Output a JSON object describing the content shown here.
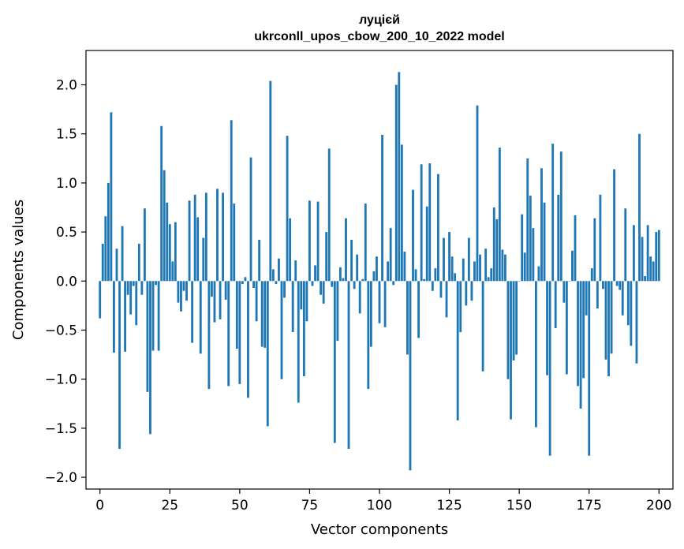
{
  "chart_data": {
    "type": "bar",
    "title_line1": "луцієй",
    "title_line2": "ukrconll_upos_cbow_200_10_2022 model",
    "xlabel": "Vector components",
    "ylabel": "Components values",
    "xlim": [
      -5,
      205
    ],
    "ylim": [
      -2.12,
      2.35
    ],
    "xticks": [
      0,
      25,
      50,
      75,
      100,
      125,
      150,
      175,
      200
    ],
    "xtick_labels": [
      "0",
      "25",
      "50",
      "75",
      "100",
      "125",
      "150",
      "175",
      "200"
    ],
    "yticks": [
      -2.0,
      -1.5,
      -1.0,
      -0.5,
      0.0,
      0.5,
      1.0,
      1.5,
      2.0
    ],
    "ytick_labels": [
      "−2.0",
      "−1.5",
      "−1.0",
      "−0.5",
      "0.0",
      "0.5",
      "1.0",
      "1.5",
      "2.0"
    ],
    "bar_color": "#1f77b4",
    "grid": false,
    "values": [
      -0.38,
      0.38,
      0.66,
      1.0,
      1.72,
      -0.73,
      0.33,
      -1.71,
      0.56,
      -0.72,
      -0.14,
      -0.34,
      -0.05,
      -0.45,
      0.38,
      -0.14,
      0.74,
      -1.13,
      -1.56,
      -0.71,
      -0.04,
      -0.71,
      1.58,
      1.13,
      0.8,
      0.58,
      0.2,
      0.6,
      -0.22,
      -0.31,
      -0.1,
      -0.2,
      0.82,
      -0.63,
      0.88,
      0.65,
      -0.74,
      0.44,
      0.9,
      -1.1,
      -0.16,
      -0.42,
      0.94,
      -0.39,
      0.9,
      -0.19,
      -1.07,
      1.64,
      0.79,
      -0.69,
      -1.05,
      -0.03,
      0.04,
      -1.19,
      1.26,
      -0.07,
      -0.41,
      0.42,
      -0.67,
      -0.68,
      -1.48,
      2.04,
      0.12,
      -0.03,
      0.23,
      -1.0,
      -0.17,
      1.48,
      0.64,
      -0.52,
      0.21,
      -1.24,
      -0.29,
      -0.97,
      -0.41,
      0.82,
      -0.05,
      0.16,
      0.81,
      -0.14,
      -0.23,
      0.5,
      1.35,
      -0.06,
      -1.65,
      -0.61,
      0.14,
      0.03,
      0.64,
      -1.71,
      0.42,
      -0.08,
      0.27,
      -0.33,
      0.02,
      0.79,
      -1.1,
      -0.67,
      0.1,
      0.25,
      -0.43,
      1.49,
      -0.47,
      0.2,
      0.54,
      -0.04,
      2.0,
      2.13,
      1.39,
      0.3,
      -0.75,
      -1.93,
      0.93,
      0.12,
      -0.58,
      1.19,
      0.02,
      0.76,
      1.2,
      -0.1,
      0.13,
      1.09,
      -0.17,
      0.44,
      -0.37,
      0.5,
      0.25,
      0.08,
      -1.42,
      -0.52,
      0.23,
      -0.25,
      0.44,
      -0.2,
      0.2,
      1.79,
      0.27,
      -0.92,
      0.33,
      0.04,
      0.13,
      0.75,
      0.63,
      1.36,
      0.32,
      0.27,
      -1.0,
      -1.41,
      -0.81,
      -0.75,
      0.0,
      0.68,
      0.29,
      1.25,
      0.87,
      0.54,
      -1.49,
      0.15,
      1.15,
      0.8,
      -0.96,
      -1.78,
      1.4,
      -0.48,
      0.88,
      1.32,
      -0.22,
      -0.95,
      0.0,
      0.31,
      0.67,
      -1.07,
      -1.3,
      -0.99,
      -0.35,
      -1.78,
      0.13,
      0.64,
      -0.28,
      0.88,
      -0.08,
      -0.8,
      -0.97,
      -0.74,
      1.14,
      -0.05,
      -0.09,
      -0.35,
      0.74,
      -0.45,
      -0.66,
      0.57,
      -0.84,
      1.5,
      0.45,
      0.05,
      0.57,
      0.25,
      0.2,
      0.5,
      0.52
    ]
  }
}
